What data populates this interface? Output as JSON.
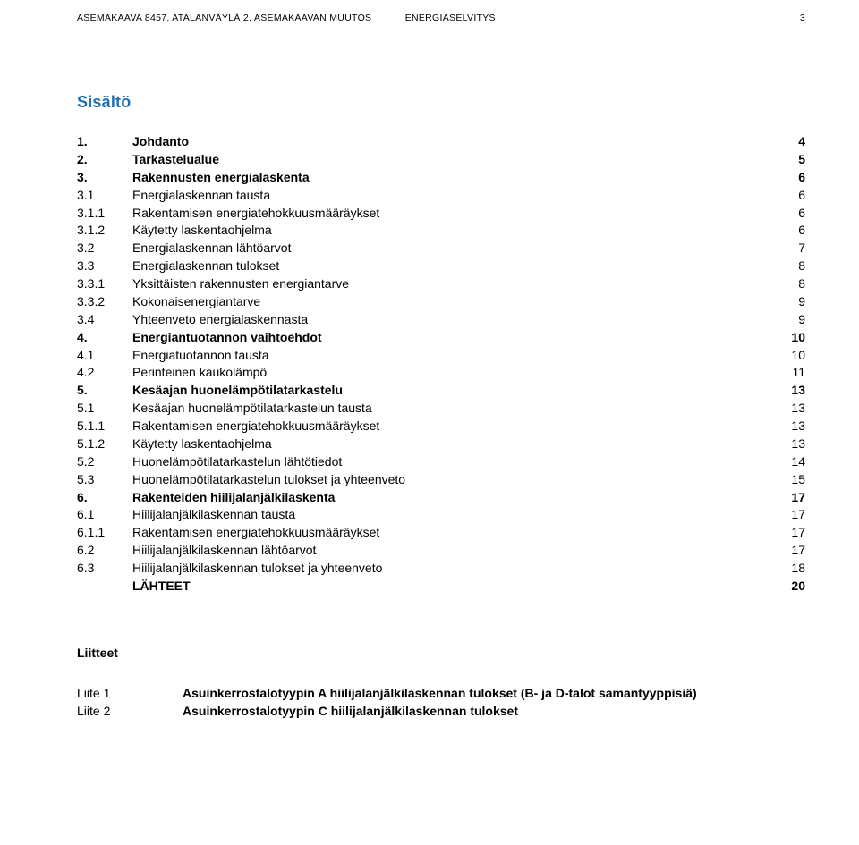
{
  "header": {
    "left": "ASEMAKAAVA 8457, ATALANVÄYLÄ 2, ASEMAKAAVAN MUUTOS",
    "rightLabel": "ENERGIASELVITYS",
    "pageNumber": "3"
  },
  "sectionTitle": "Sisältö",
  "toc": [
    {
      "num": "1.",
      "label": "Johdanto",
      "page": "4",
      "bold": true
    },
    {
      "num": "2.",
      "label": "Tarkastelualue",
      "page": "5",
      "bold": true
    },
    {
      "num": "3.",
      "label": "Rakennusten energialaskenta",
      "page": "6",
      "bold": true
    },
    {
      "num": "3.1",
      "label": "Energialaskennan tausta",
      "page": "6",
      "bold": false
    },
    {
      "num": "3.1.1",
      "label": "Rakentamisen energiatehokkuusmääräykset",
      "page": "6",
      "bold": false
    },
    {
      "num": "3.1.2",
      "label": "Käytetty laskentaohjelma",
      "page": "6",
      "bold": false
    },
    {
      "num": "3.2",
      "label": "Energialaskennan lähtöarvot",
      "page": "7",
      "bold": false
    },
    {
      "num": "3.3",
      "label": "Energialaskennan tulokset",
      "page": "8",
      "bold": false
    },
    {
      "num": "3.3.1",
      "label": "Yksittäisten rakennusten energiantarve",
      "page": "8",
      "bold": false
    },
    {
      "num": "3.3.2",
      "label": "Kokonaisenergiantarve",
      "page": "9",
      "bold": false
    },
    {
      "num": "3.4",
      "label": "Yhteenveto energialaskennasta",
      "page": "9",
      "bold": false
    },
    {
      "num": "4.",
      "label": "Energiantuotannon vaihtoehdot",
      "page": "10",
      "bold": true
    },
    {
      "num": "4.1",
      "label": "Energiatuotannon tausta",
      "page": "10",
      "bold": false
    },
    {
      "num": "4.2",
      "label": "Perinteinen kaukolämpö",
      "page": "11",
      "bold": false
    },
    {
      "num": "5.",
      "label": "Kesäajan huonelämpötilatarkastelu",
      "page": "13",
      "bold": true
    },
    {
      "num": "5.1",
      "label": "Kesäajan huonelämpötilatarkastelun tausta",
      "page": "13",
      "bold": false
    },
    {
      "num": "5.1.1",
      "label": "Rakentamisen energiatehokkuusmääräykset",
      "page": "13",
      "bold": false
    },
    {
      "num": "5.1.2",
      "label": "Käytetty laskentaohjelma",
      "page": "13",
      "bold": false
    },
    {
      "num": "5.2",
      "label": "Huonelämpötilatarkastelun lähtötiedot",
      "page": "14",
      "bold": false
    },
    {
      "num": "5.3",
      "label": "Huonelämpötilatarkastelun tulokset ja yhteenveto",
      "page": "15",
      "bold": false
    },
    {
      "num": "6.",
      "label": "Rakenteiden hiilijalanjälkilaskenta",
      "page": "17",
      "bold": true
    },
    {
      "num": "6.1",
      "label": "Hiilijalanjälkilaskennan tausta",
      "page": "17",
      "bold": false
    },
    {
      "num": "6.1.1",
      "label": "Rakentamisen energiatehokkuusmääräykset",
      "page": "17",
      "bold": false
    },
    {
      "num": "6.2",
      "label": "Hiilijalanjälkilaskennan lähtöarvot",
      "page": "17",
      "bold": false
    },
    {
      "num": "6.3",
      "label": "Hiilijalanjälkilaskennan tulokset ja yhteenveto",
      "page": "18",
      "bold": false
    },
    {
      "num": "",
      "label": "LÄHTEET",
      "page": "20",
      "bold": true
    }
  ],
  "attachments": {
    "title": "Liitteet",
    "rows": [
      {
        "key": "Liite 1",
        "val": "Asuinkerrostalotyypin A hiilijalanjälkilaskennan tulokset (B- ja D-talot samantyyppisiä)"
      },
      {
        "key": "Liite 2",
        "val": "Asuinkerrostalotyypin C hiilijalanjälkilaskennan tulokset"
      }
    ]
  }
}
